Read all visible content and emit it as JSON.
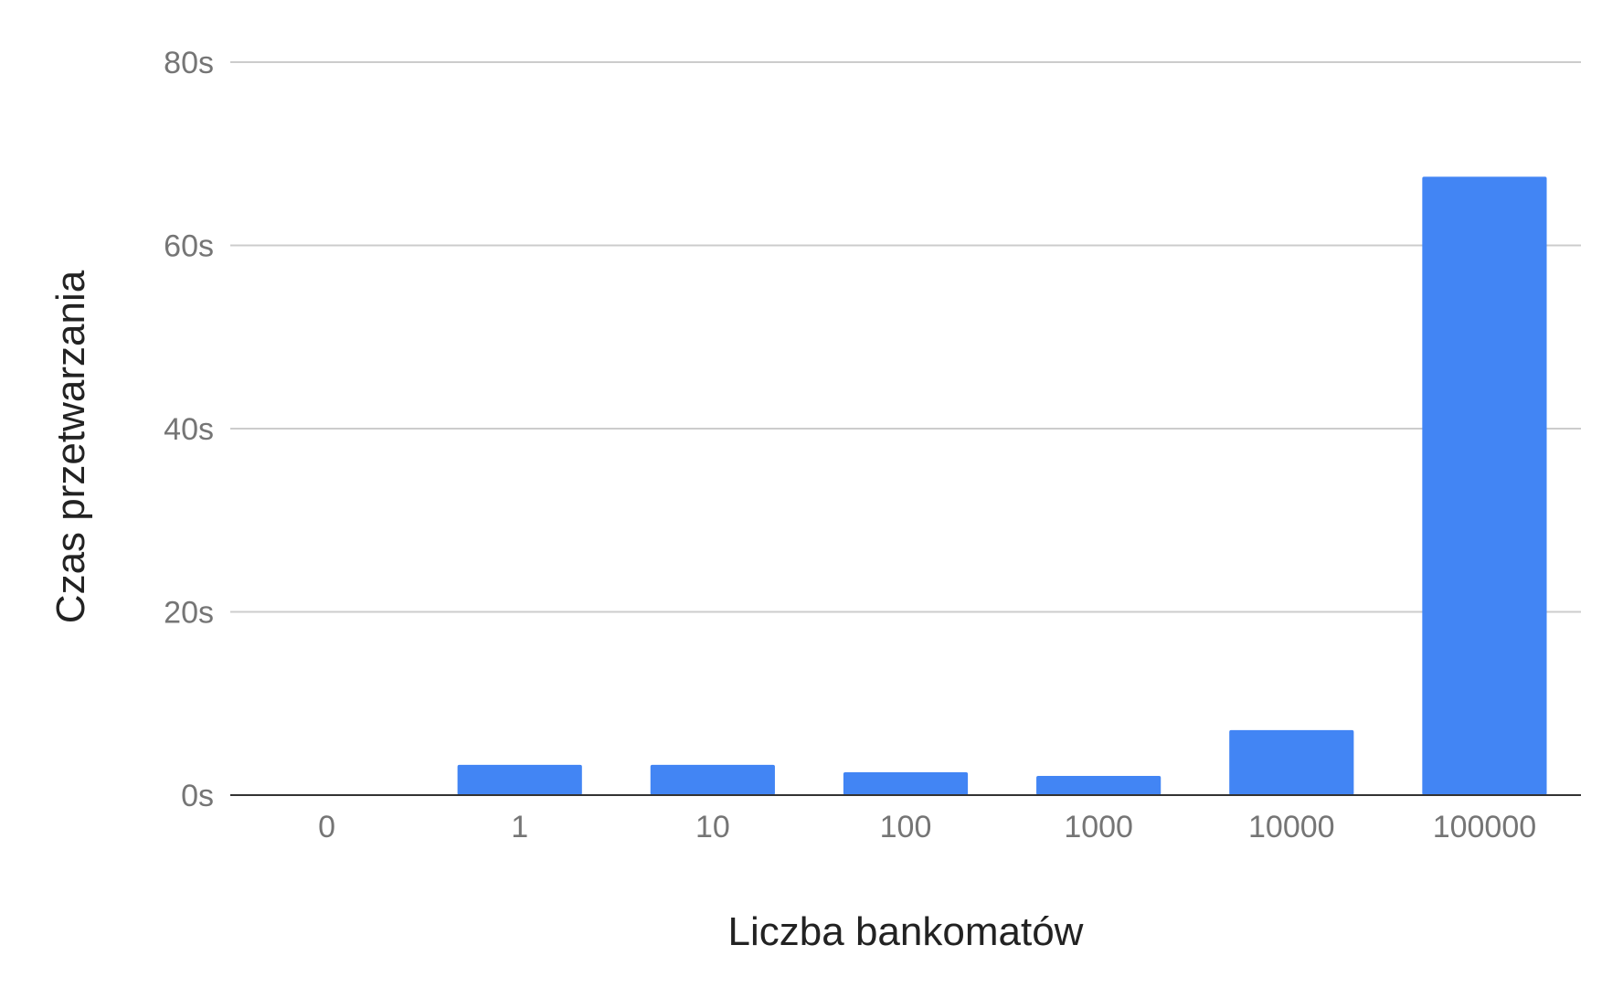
{
  "chart_data": {
    "type": "bar",
    "title": "",
    "xlabel": "Liczba bankomatów",
    "ylabel": "Czas przetwarzania",
    "categories": [
      "0",
      "1",
      "10",
      "100",
      "1000",
      "10000",
      "100000"
    ],
    "series": [
      {
        "values": [
          0.1,
          3.3,
          3.3,
          2.5,
          2.1,
          7.1,
          67.5
        ],
        "color": "#4285f4"
      }
    ],
    "ylim": [
      0,
      80
    ],
    "yticks": [
      0,
      20,
      40,
      60,
      80
    ],
    "ytick_labels": [
      "0s",
      "20s",
      "40s",
      "60s",
      "80s"
    ],
    "grid": true,
    "legend": "none"
  }
}
